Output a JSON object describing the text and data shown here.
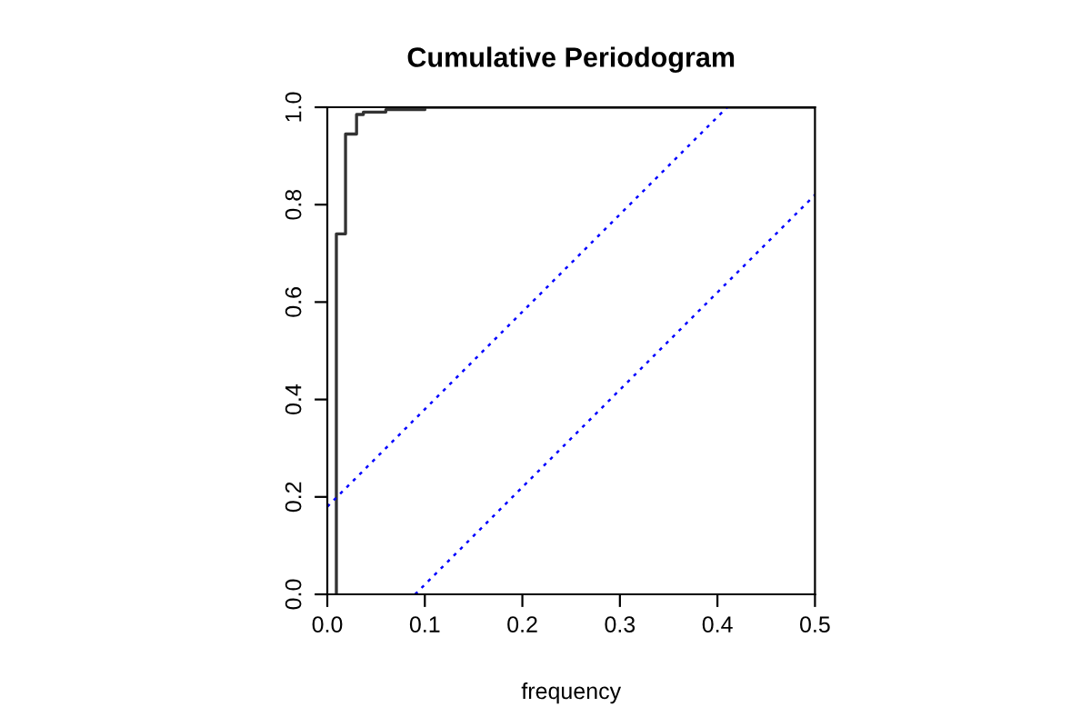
{
  "chart_data": {
    "type": "step",
    "title": "Cumulative Periodogram",
    "xlabel": "frequency",
    "series": [
      {
        "color": "#333333",
        "x": [
          0.0093,
          0.0093,
          0.0187,
          0.03,
          0.037,
          0.06,
          0.1,
          0.5
        ],
        "values": [
          0,
          0.74,
          0.945,
          0.985,
          0.99,
          0.995,
          1,
          1
        ]
      },
      {
        "type": "line",
        "color": "#0000ff",
        "line_style": "dotted",
        "x": [
          0,
          0.41
        ],
        "values": [
          0.18,
          1
        ]
      },
      {
        "type": "line",
        "color": "#0000ff",
        "line_style": "dotted",
        "x": [
          0.09,
          0.5
        ],
        "values": [
          0,
          0.82
        ]
      }
    ],
    "xlim": [
      0,
      0.5
    ],
    "ylim": [
      0,
      1
    ],
    "xticks": [
      {
        "value": 0,
        "label": "0.0"
      },
      0.1,
      0.2,
      0.3,
      0.4,
      0.5
    ],
    "yticks": [
      {
        "value": 0,
        "label": "0.0"
      },
      0.2,
      0.4,
      0.6,
      0.8,
      {
        "value": 1,
        "label": "1.0"
      }
    ],
    "grid": false,
    "legend": false
  }
}
